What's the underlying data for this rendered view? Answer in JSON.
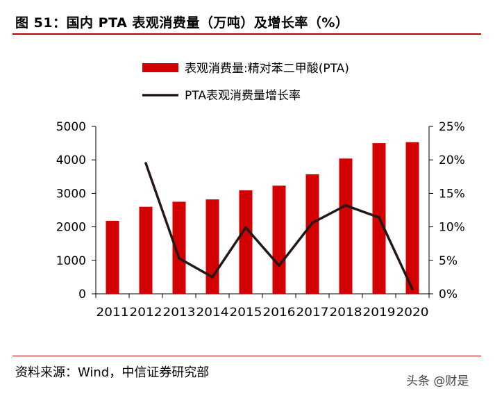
{
  "title": "图 51：国内 PTA 表观消费量（万吨）及增长率（%）",
  "source": "资料来源：Wind，中信证券研究部",
  "watermark": "头条 @财是",
  "chart_data": {
    "type": "bar",
    "categories": [
      "2011",
      "2012",
      "2013",
      "2014",
      "2015",
      "2016",
      "2017",
      "2018",
      "2019",
      "2020"
    ],
    "series": [
      {
        "name": "表观消费量:精对苯二甲酸(PTA)",
        "type": "bar",
        "axis": "left",
        "color": "#d20000",
        "values": [
          2180,
          2600,
          2750,
          2820,
          3090,
          3230,
          3570,
          4040,
          4500,
          4530
        ]
      },
      {
        "name": "PTA表观消费量增长率",
        "type": "line",
        "axis": "right",
        "color": "#231815",
        "values": [
          null,
          19.5,
          5.3,
          2.5,
          9.9,
          4.2,
          10.6,
          13.2,
          11.4,
          0.7
        ]
      }
    ],
    "y_left": {
      "min": 0,
      "max": 5000,
      "ticks": [
        "0",
        "1000",
        "2000",
        "3000",
        "4000",
        "5000"
      ]
    },
    "y_right": {
      "min": 0,
      "max": 25,
      "ticks": [
        "0%",
        "5%",
        "10%",
        "15%",
        "20%",
        "25%"
      ]
    },
    "legend": "top",
    "grid": false
  }
}
